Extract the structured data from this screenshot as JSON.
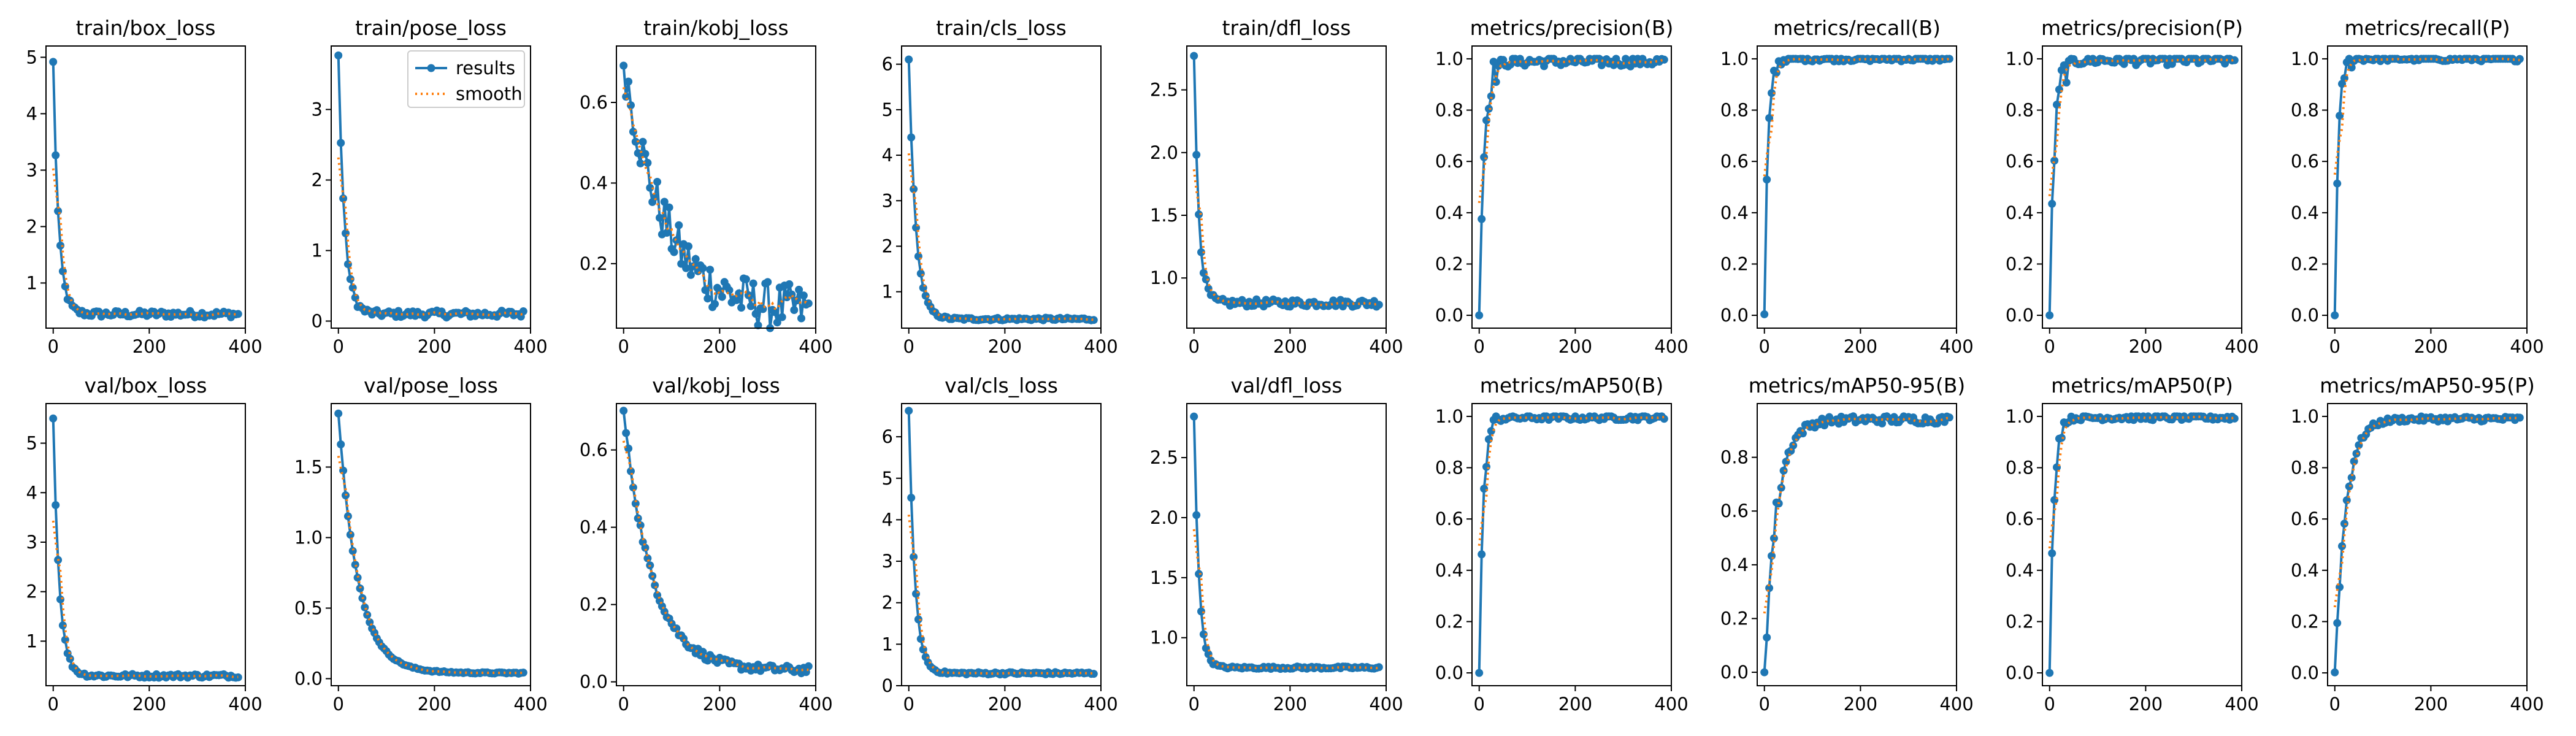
{
  "colors": {
    "results": "#1f77b4",
    "smooth": "#ff7f0e"
  },
  "legend": {
    "results_label": "results",
    "smooth_label": "smooth",
    "placement": "top-right",
    "panel": "train/pose_loss"
  },
  "chart_data": [
    {
      "type": "line",
      "title": "train/box_loss",
      "xlim": [
        -15,
        400
      ],
      "ylim": [
        0.2,
        5.2
      ],
      "xticks": [
        "0",
        "200",
        "400"
      ],
      "yticks": [
        "1",
        "2",
        "3",
        "4",
        "5"
      ],
      "xtick_values": [
        0,
        200,
        400
      ],
      "ytick_values": [
        1,
        2,
        3,
        4,
        5
      ],
      "curve": {
        "kind": "decay",
        "start": 4.9,
        "end": 0.45,
        "k": 0.09,
        "noise": 0.06
      }
    },
    {
      "type": "line",
      "title": "train/pose_loss",
      "xlim": [
        -15,
        400
      ],
      "ylim": [
        -0.1,
        3.9
      ],
      "xticks": [
        "0",
        "200",
        "400"
      ],
      "yticks": [
        "0",
        "1",
        "2",
        "3"
      ],
      "xtick_values": [
        0,
        200,
        400
      ],
      "ytick_values": [
        0,
        1,
        2,
        3
      ],
      "curve": {
        "kind": "decay",
        "start": 3.75,
        "end": 0.1,
        "k": 0.08,
        "noise": 0.05
      }
    },
    {
      "type": "line",
      "title": "train/kobj_loss",
      "xlim": [
        -15,
        400
      ],
      "ylim": [
        0.04,
        0.74
      ],
      "xticks": [
        "0",
        "200",
        "400"
      ],
      "yticks": [
        "0.2",
        "0.4",
        "0.6"
      ],
      "xtick_values": [
        0,
        200,
        400
      ],
      "ytick_values": [
        0.2,
        0.4,
        0.6
      ],
      "curve": {
        "kind": "decay",
        "start": 0.71,
        "end": 0.08,
        "k": 0.012,
        "noise": 0.06
      }
    },
    {
      "type": "line",
      "title": "train/cls_loss",
      "xlim": [
        -15,
        400
      ],
      "ylim": [
        0.2,
        6.4
      ],
      "xticks": [
        "0",
        "200",
        "400"
      ],
      "yticks": [
        "1",
        "2",
        "3",
        "4",
        "5",
        "6"
      ],
      "xtick_values": [
        0,
        200,
        400
      ],
      "ytick_values": [
        1,
        2,
        3,
        4,
        5,
        6
      ],
      "curve": {
        "kind": "decay",
        "start": 6.1,
        "end": 0.4,
        "k": 0.07,
        "noise": 0.03
      }
    },
    {
      "type": "line",
      "title": "train/dfl_loss",
      "xlim": [
        -15,
        400
      ],
      "ylim": [
        0.6,
        2.85
      ],
      "xticks": [
        "0",
        "200",
        "400"
      ],
      "yticks": [
        "1.0",
        "1.5",
        "2.0",
        "2.5"
      ],
      "xtick_values": [
        0,
        200,
        400
      ],
      "ytick_values": [
        1,
        1.5,
        2,
        2.5
      ],
      "curve": {
        "kind": "decay",
        "start": 2.75,
        "end": 0.8,
        "k": 0.1,
        "noise": 0.03
      }
    },
    {
      "type": "line",
      "title": "metrics/precision(B)",
      "xlim": [
        -15,
        400
      ],
      "ylim": [
        -0.05,
        1.05
      ],
      "xticks": [
        "0",
        "200",
        "400"
      ],
      "yticks": [
        "0.0",
        "0.2",
        "0.4",
        "0.6",
        "0.8",
        "1.0"
      ],
      "xtick_values": [
        0,
        200,
        400
      ],
      "ytick_values": [
        0,
        0.2,
        0.4,
        0.6,
        0.8,
        1
      ],
      "curve": {
        "kind": "rise",
        "start": 0.0,
        "end": 0.99,
        "k": 0.1,
        "noise": 0.02
      }
    },
    {
      "type": "line",
      "title": "metrics/recall(B)",
      "xlim": [
        -15,
        400
      ],
      "ylim": [
        -0.05,
        1.05
      ],
      "xticks": [
        "0",
        "200",
        "400"
      ],
      "yticks": [
        "0.0",
        "0.2",
        "0.4",
        "0.6",
        "0.8",
        "1.0"
      ],
      "xtick_values": [
        0,
        200,
        400
      ],
      "ytick_values": [
        0,
        0.2,
        0.4,
        0.6,
        0.8,
        1
      ],
      "curve": {
        "kind": "rise",
        "start": 0.0,
        "end": 1.0,
        "k": 0.14,
        "noise": 0.01
      }
    },
    {
      "type": "line",
      "title": "metrics/precision(P)",
      "xlim": [
        -15,
        400
      ],
      "ylim": [
        -0.05,
        1.05
      ],
      "xticks": [
        "0",
        "200",
        "400"
      ],
      "yticks": [
        "0.0",
        "0.2",
        "0.4",
        "0.6",
        "0.8",
        "1.0"
      ],
      "xtick_values": [
        0,
        200,
        400
      ],
      "ytick_values": [
        0,
        0.2,
        0.4,
        0.6,
        0.8,
        1
      ],
      "curve": {
        "kind": "rise",
        "start": 0.0,
        "end": 0.995,
        "k": 0.1,
        "noise": 0.02
      }
    },
    {
      "type": "line",
      "title": "metrics/recall(P)",
      "xlim": [
        -15,
        400
      ],
      "ylim": [
        -0.05,
        1.05
      ],
      "xticks": [
        "0",
        "200",
        "400"
      ],
      "yticks": [
        "0.0",
        "0.2",
        "0.4",
        "0.6",
        "0.8",
        "1.0"
      ],
      "xtick_values": [
        0,
        200,
        400
      ],
      "ytick_values": [
        0,
        0.2,
        0.4,
        0.6,
        0.8,
        1
      ],
      "curve": {
        "kind": "rise",
        "start": 0.0,
        "end": 1.0,
        "k": 0.14,
        "noise": 0.01
      }
    },
    {
      "type": "line",
      "title": "val/box_loss",
      "xlim": [
        -15,
        400
      ],
      "ylim": [
        0.1,
        5.8
      ],
      "xticks": [
        "0",
        "200",
        "400"
      ],
      "yticks": [
        "1",
        "2",
        "3",
        "4",
        "5"
      ],
      "xtick_values": [
        0,
        200,
        400
      ],
      "ytick_values": [
        1,
        2,
        3,
        4,
        5
      ],
      "curve": {
        "kind": "decay",
        "start": 5.5,
        "end": 0.3,
        "k": 0.08,
        "noise": 0.04
      }
    },
    {
      "type": "line",
      "title": "val/pose_loss",
      "xlim": [
        -15,
        400
      ],
      "ylim": [
        -0.05,
        1.95
      ],
      "xticks": [
        "0",
        "200",
        "400"
      ],
      "yticks": [
        "0.0",
        "0.5",
        "1.0",
        "1.5"
      ],
      "xtick_values": [
        0,
        200,
        400
      ],
      "ytick_values": [
        0,
        0.5,
        1,
        1.5
      ],
      "curve": {
        "kind": "decay",
        "start": 1.88,
        "end": 0.04,
        "k": 0.025,
        "noise": 0.005
      }
    },
    {
      "type": "line",
      "title": "val/kobj_loss",
      "xlim": [
        -15,
        400
      ],
      "ylim": [
        -0.01,
        0.72
      ],
      "xticks": [
        "0",
        "200",
        "400"
      ],
      "yticks": [
        "0.0",
        "0.2",
        "0.4",
        "0.6"
      ],
      "xtick_values": [
        0,
        200,
        400
      ],
      "ytick_values": [
        0,
        0.2,
        0.4,
        0.6
      ],
      "curve": {
        "kind": "decay",
        "start": 0.7,
        "end": 0.03,
        "k": 0.017,
        "noise": 0.01
      }
    },
    {
      "type": "line",
      "title": "val/cls_loss",
      "xlim": [
        -15,
        400
      ],
      "ylim": [
        0,
        6.8
      ],
      "xticks": [
        "0",
        "200",
        "400"
      ],
      "yticks": [
        "0",
        "1",
        "2",
        "3",
        "4",
        "5",
        "6"
      ],
      "xtick_values": [
        0,
        200,
        400
      ],
      "ytick_values": [
        0,
        1,
        2,
        3,
        4,
        5,
        6
      ],
      "curve": {
        "kind": "decay",
        "start": 6.6,
        "end": 0.3,
        "k": 0.08,
        "noise": 0.03
      }
    },
    {
      "type": "line",
      "title": "val/dfl_loss",
      "xlim": [
        -15,
        400
      ],
      "ylim": [
        0.6,
        2.95
      ],
      "xticks": [
        "0",
        "200",
        "400"
      ],
      "yticks": [
        "1.0",
        "1.5",
        "2.0",
        "2.5"
      ],
      "xtick_values": [
        0,
        200,
        400
      ],
      "ytick_values": [
        1,
        1.5,
        2,
        2.5
      ],
      "curve": {
        "kind": "decay",
        "start": 2.85,
        "end": 0.75,
        "k": 0.1,
        "noise": 0.01
      }
    },
    {
      "type": "line",
      "title": "metrics/mAP50(B)",
      "xlim": [
        -15,
        400
      ],
      "ylim": [
        -0.05,
        1.05
      ],
      "xticks": [
        "0",
        "200",
        "400"
      ],
      "yticks": [
        "0.0",
        "0.2",
        "0.4",
        "0.6",
        "0.8",
        "1.0"
      ],
      "xtick_values": [
        0,
        200,
        400
      ],
      "ytick_values": [
        0,
        0.2,
        0.4,
        0.6,
        0.8,
        1
      ],
      "curve": {
        "kind": "rise",
        "start": 0.0,
        "end": 0.995,
        "k": 0.12,
        "noise": 0.01
      }
    },
    {
      "type": "line",
      "title": "metrics/mAP50-95(B)",
      "xlim": [
        -15,
        400
      ],
      "ylim": [
        -0.05,
        1.0
      ],
      "xticks": [
        "0",
        "200",
        "400"
      ],
      "yticks": [
        "0.0",
        "0.2",
        "0.4",
        "0.6",
        "0.8"
      ],
      "xtick_values": [
        0,
        200,
        400
      ],
      "ytick_values": [
        0,
        0.2,
        0.4,
        0.6,
        0.8
      ],
      "curve": {
        "kind": "rise",
        "start": 0.0,
        "end": 0.94,
        "k": 0.04,
        "noise": 0.015
      }
    },
    {
      "type": "line",
      "title": "metrics/mAP50(P)",
      "xlim": [
        -15,
        400
      ],
      "ylim": [
        -0.05,
        1.05
      ],
      "xticks": [
        "0",
        "200",
        "400"
      ],
      "yticks": [
        "0.0",
        "0.2",
        "0.4",
        "0.6",
        "0.8",
        "1.0"
      ],
      "xtick_values": [
        0,
        200,
        400
      ],
      "ytick_values": [
        0,
        0.2,
        0.4,
        0.6,
        0.8,
        1
      ],
      "curve": {
        "kind": "rise",
        "start": 0.0,
        "end": 0.995,
        "k": 0.12,
        "noise": 0.01
      }
    },
    {
      "type": "line",
      "title": "metrics/mAP50-95(P)",
      "xlim": [
        -15,
        400
      ],
      "ylim": [
        -0.05,
        1.05
      ],
      "xticks": [
        "0",
        "200",
        "400"
      ],
      "yticks": [
        "0.0",
        "0.2",
        "0.4",
        "0.6",
        "0.8",
        "1.0"
      ],
      "xtick_values": [
        0,
        200,
        400
      ],
      "ytick_values": [
        0,
        0.2,
        0.4,
        0.6,
        0.8,
        1
      ],
      "curve": {
        "kind": "rise",
        "start": 0.0,
        "end": 0.99,
        "k": 0.045,
        "noise": 0.01
      }
    }
  ]
}
